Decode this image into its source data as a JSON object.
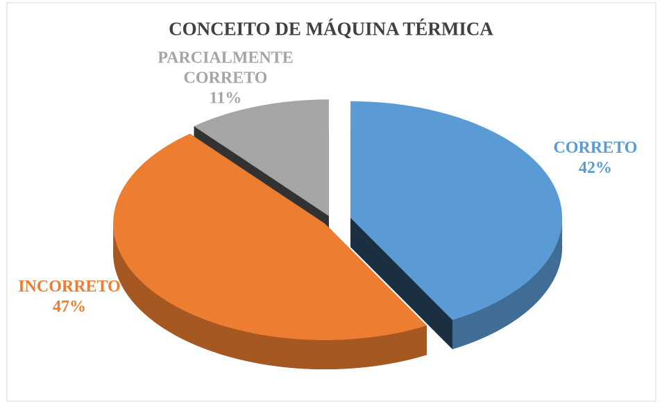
{
  "chart_data": {
    "type": "pie",
    "title": "CONCEITO DE MÁQUINA TÉRMICA",
    "categories": [
      "CORRETO",
      "INCORRETO",
      "PARCIALMENTE CORRETO"
    ],
    "values": [
      42,
      47,
      11
    ],
    "value_labels": [
      "42%",
      "47%",
      "11%"
    ],
    "colors": [
      "#5b9bd5",
      "#ed7d31",
      "#a5a5a5"
    ]
  }
}
